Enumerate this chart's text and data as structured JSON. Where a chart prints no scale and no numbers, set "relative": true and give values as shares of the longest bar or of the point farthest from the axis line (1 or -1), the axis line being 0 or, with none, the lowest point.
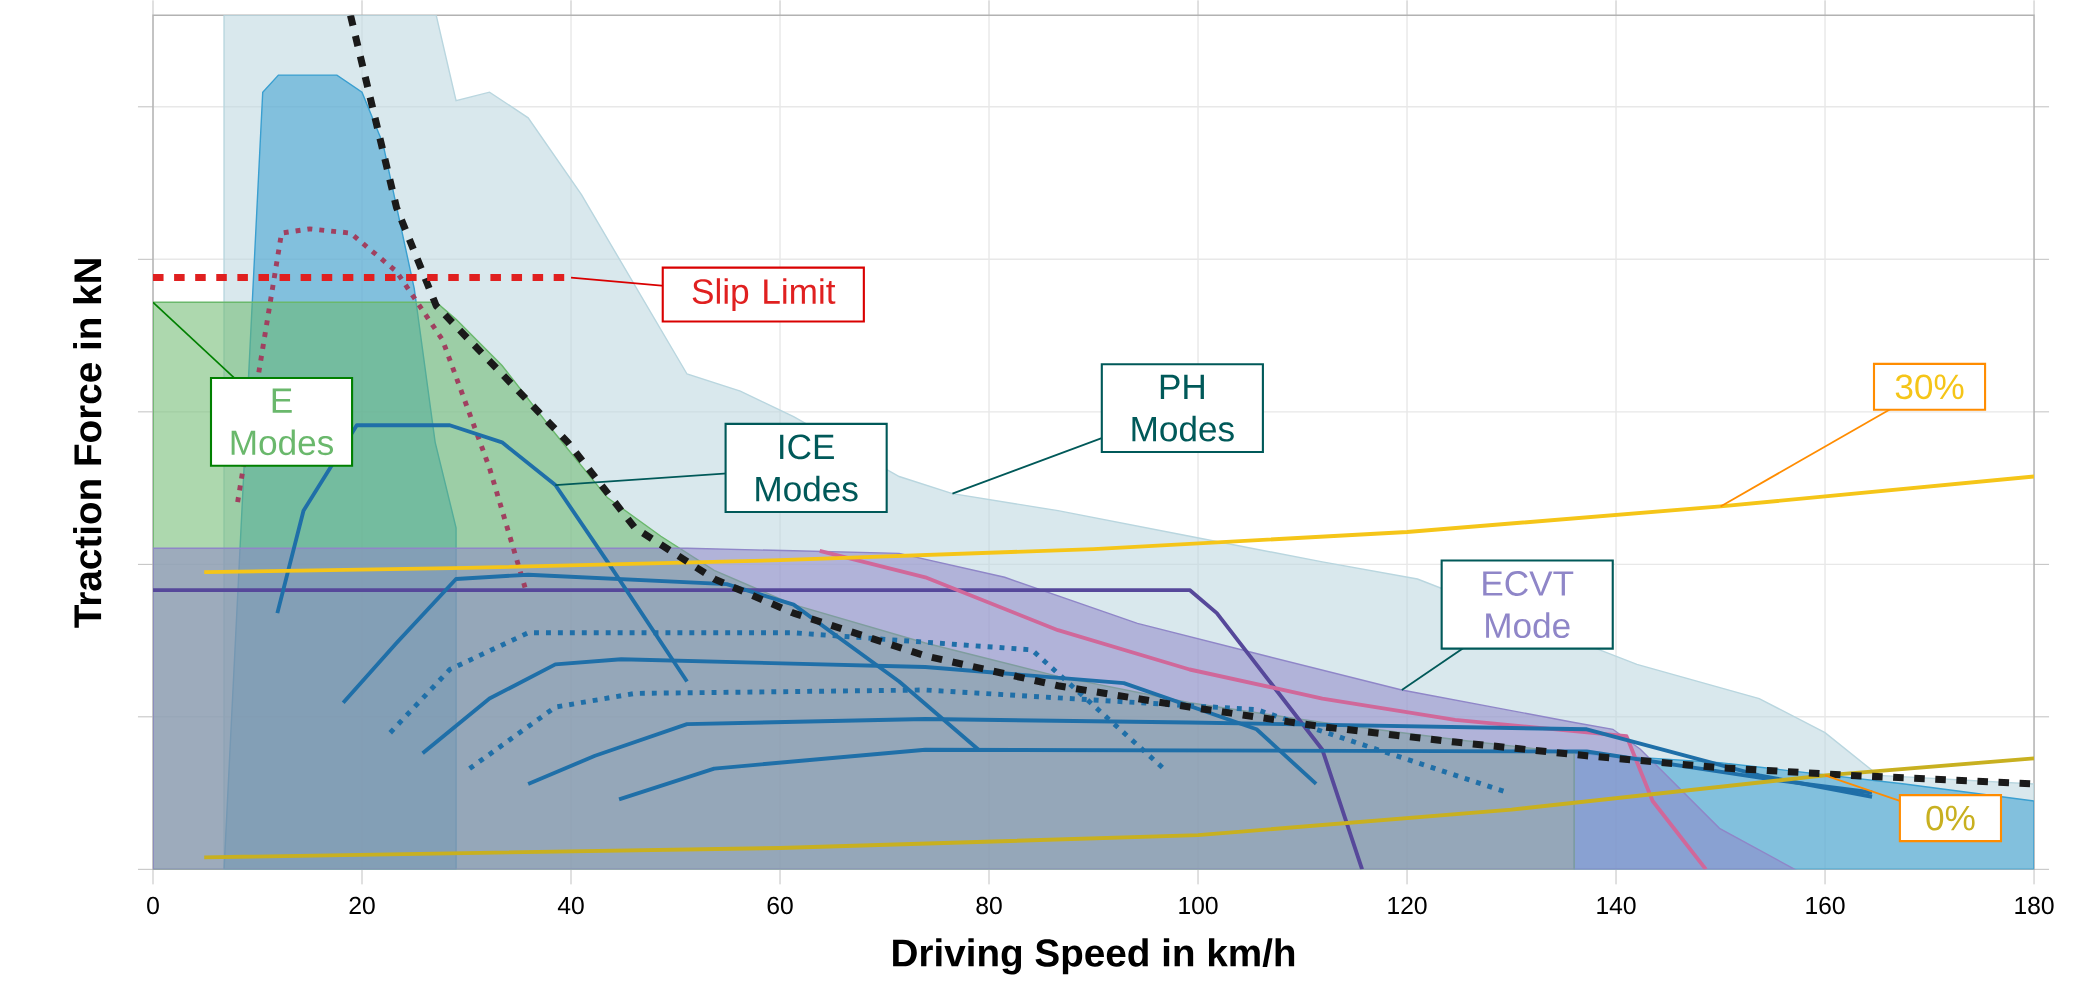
{
  "chart_data": {
    "type": "line",
    "xlabel": "Driving Speed in km/h",
    "ylabel": "Traction Force in kN",
    "xlim": [
      0,
      180
    ],
    "xticks": [
      0,
      20,
      40,
      60,
      80,
      100,
      120,
      140,
      160,
      180
    ],
    "relative": true,
    "grid": true,
    "tick_labels": "x",
    "series": [
      {
        "name": "PH Modes",
        "type": "area",
        "color": "#b9d6df",
        "x": [
          6.8,
          27.1,
          29.0,
          32.2,
          35.9,
          41.0,
          51.1,
          56.2,
          61.3,
          71.4,
          76.5,
          86.6,
          99.2,
          111.9,
          121,
          142,
          153.7,
          160.0,
          165.1,
          180
        ],
        "values": [
          1.0,
          1.0,
          0.9,
          0.91,
          0.88,
          0.79,
          0.58,
          0.56,
          0.53,
          0.46,
          0.44,
          0.42,
          0.39,
          0.36,
          0.34,
          0.24,
          0.2,
          0.16,
          0.11,
          0.1
        ]
      },
      {
        "type": "area",
        "color": "#3a9fd0",
        "x": [
          6.8,
          10.5,
          12.0,
          17.6,
          20.0,
          22.0,
          25.0,
          27.0,
          29.0
        ],
        "values": [
          0,
          0.91,
          0.93,
          0.93,
          0.91,
          0.85,
          0.68,
          0.5,
          0.4
        ]
      },
      {
        "type": "area",
        "color": "#3a9fd0",
        "x": [
          136,
          149.9,
          167.6,
          180
        ],
        "values": [
          0.136,
          0.125,
          0.1,
          0.08
        ]
      },
      {
        "name": "E Modes",
        "type": "area",
        "color": "#6ab86c",
        "x": [
          0,
          27.1,
          29.0,
          33.4,
          38.5,
          43.5,
          48.6,
          53.7,
          61.3,
          73.9,
          86.6,
          99.2,
          111.9,
          124.6,
          136
        ],
        "values": [
          0.664,
          0.664,
          0.644,
          0.59,
          0.51,
          0.435,
          0.39,
          0.35,
          0.31,
          0.265,
          0.226,
          0.195,
          0.172,
          0.152,
          0.136
        ]
      },
      {
        "name": "ECVT Mode",
        "type": "area",
        "color": "#8f86c8",
        "x": [
          0,
          51.1,
          61.3,
          71.4,
          81.5,
          94.2,
          106.8,
          119.5,
          136,
          139.7,
          142.3,
          149.9,
          157.1
        ],
        "values": [
          0.376,
          0.376,
          0.373,
          0.37,
          0.342,
          0.288,
          0.249,
          0.21,
          0.172,
          0.164,
          0.141,
          0.048,
          0
        ]
      },
      {
        "color": "#56489a",
        "x": [
          0,
          99.2,
          101.8,
          111.9,
          115.7
        ],
        "values": [
          0.327,
          0.327,
          0.3,
          0.14,
          0
        ]
      },
      {
        "color": "#d0689a",
        "x": [
          63.8,
          73.9,
          86.6,
          99.2,
          111.9,
          124.6,
          141,
          143.5,
          148.6
        ],
        "values": [
          0.373,
          0.342,
          0.28,
          0.234,
          0.2,
          0.175,
          0.156,
          0.08,
          0
        ]
      },
      {
        "color": "#a04060",
        "line_style": "dotted",
        "x": [
          8.1,
          12.3,
          15,
          18.9,
          23.3,
          27.7,
          32.2,
          35.6
        ],
        "values": [
          0.43,
          0.745,
          0.75,
          0.745,
          0.7,
          0.62,
          0.47,
          0.33
        ]
      },
      {
        "name": "ICE Modes",
        "color": "#1f6fa8",
        "x": [
          11.9,
          14.4,
          19.5,
          23.3,
          28.4,
          33.4,
          38.5,
          43.5,
          51.1
        ],
        "values": [
          0.3,
          0.42,
          0.52,
          0.52,
          0.52,
          0.5,
          0.45,
          0.36,
          0.22
        ]
      },
      {
        "color": "#1f6fa8",
        "x": [
          18.2,
          23.3,
          29.0,
          35.9,
          54.9,
          61.3,
          71.4,
          79.0
        ],
        "values": [
          0.195,
          0.265,
          0.34,
          0.345,
          0.334,
          0.31,
          0.22,
          0.14
        ]
      },
      {
        "color": "#1f6fa8",
        "x": [
          25.8,
          32.2,
          38.5,
          44.8,
          73.9,
          92.9,
          105.6,
          111.3
        ],
        "values": [
          0.136,
          0.2,
          0.24,
          0.246,
          0.237,
          0.218,
          0.164,
          0.1
        ]
      },
      {
        "color": "#1f6fa8",
        "x": [
          35.9,
          42.3,
          51.1,
          73.9,
          99.2,
          137.2,
          153.7,
          164.5
        ],
        "values": [
          0.1,
          0.133,
          0.17,
          0.176,
          0.172,
          0.164,
          0.11,
          0.085
        ]
      },
      {
        "color": "#1f6fa8",
        "x": [
          44.6,
          53.7,
          73.9,
          137.2,
          155,
          164.5
        ],
        "values": [
          0.082,
          0.118,
          0.14,
          0.138,
          0.105,
          0.09
        ]
      },
      {
        "color": "#1f6fa8",
        "line_style": "dotted",
        "x": [
          22.7,
          28.4,
          35.9,
          61.3,
          84.1,
          96.7
        ],
        "values": [
          0.16,
          0.234,
          0.277,
          0.277,
          0.257,
          0.118
        ]
      },
      {
        "color": "#1f6fa8",
        "line_style": "dotted",
        "x": [
          30.3,
          38.5,
          46.1,
          73.9,
          105.6,
          129.6
        ],
        "values": [
          0.118,
          0.19,
          0.206,
          0.21,
          0.187,
          0.09
        ]
      },
      {
        "name": "30%",
        "color": "#f5c518",
        "x": [
          4.9,
          30,
          60,
          90,
          120,
          150,
          180
        ],
        "values": [
          0.348,
          0.353,
          0.362,
          0.375,
          0.395,
          0.425,
          0.46
        ]
      },
      {
        "name": "0%",
        "color": "#c8b020",
        "x": [
          4.9,
          60,
          100,
          130,
          160,
          180
        ],
        "values": [
          0.014,
          0.025,
          0.04,
          0.07,
          0.11,
          0.13
        ]
      },
      {
        "color": "#1a1a1a",
        "line_style": "dashed",
        "x": [
          18.9,
          23.3,
          27.1,
          33.4,
          39.7,
          46.1,
          53.7,
          61.3,
          73.9,
          86.6,
          99.2,
          111.9,
          124.6,
          137.2,
          149.9,
          162.5,
          180
        ],
        "values": [
          1.0,
          0.775,
          0.66,
          0.58,
          0.5,
          0.4,
          0.34,
          0.3,
          0.25,
          0.215,
          0.19,
          0.167,
          0.149,
          0.133,
          0.119,
          0.11,
          0.1
        ]
      },
      {
        "name": "Slip Limit",
        "color": "#e02020",
        "line_style": "dashed",
        "x": [
          0,
          40
        ],
        "values": [
          0.693,
          0.693
        ]
      }
    ]
  }
}
